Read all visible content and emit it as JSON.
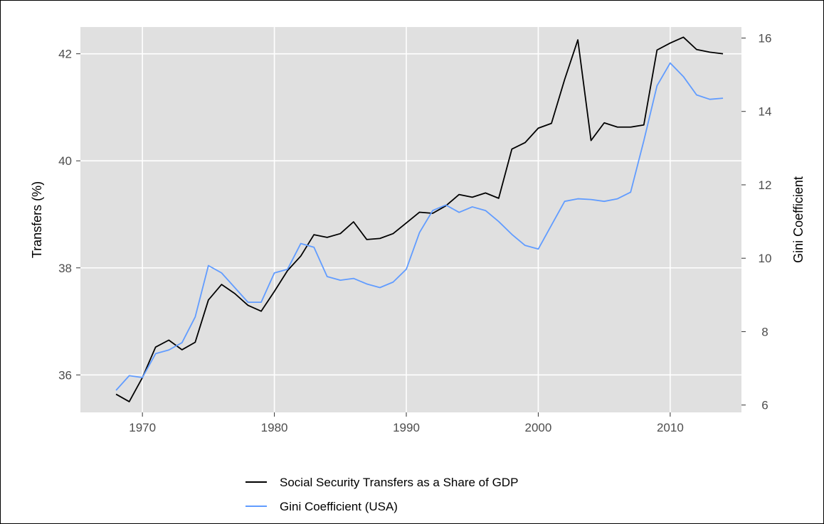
{
  "chart_data": {
    "type": "line",
    "x": [
      1968,
      1969,
      1970,
      1971,
      1972,
      1973,
      1974,
      1975,
      1976,
      1977,
      1978,
      1979,
      1980,
      1981,
      1982,
      1983,
      1984,
      1985,
      1986,
      1987,
      1988,
      1989,
      1990,
      1991,
      1992,
      1993,
      1994,
      1995,
      1996,
      1997,
      1998,
      1999,
      2000,
      2001,
      2002,
      2003,
      2004,
      2005,
      2006,
      2007,
      2008,
      2009,
      2010,
      2011,
      2012,
      2013,
      2014
    ],
    "xlim": [
      1965.3,
      2015.4
    ],
    "xticks": [
      "1970",
      "1980",
      "1990",
      "2000",
      "2010"
    ],
    "series": [
      {
        "name": "Social Security Transfers as a Share of GDP",
        "axis": "left",
        "color": "#000000",
        "values": [
          35.64,
          35.5,
          35.95,
          36.52,
          36.65,
          36.47,
          36.61,
          37.4,
          37.69,
          37.52,
          37.3,
          37.19,
          37.56,
          37.95,
          38.22,
          38.62,
          38.57,
          38.64,
          38.86,
          38.53,
          38.55,
          38.64,
          38.84,
          39.04,
          39.02,
          39.16,
          39.37,
          39.32,
          39.4,
          39.3,
          40.22,
          40.34,
          40.61,
          40.7,
          41.52,
          42.26,
          40.38,
          40.71,
          40.63,
          40.63,
          40.67,
          42.07,
          42.2,
          42.31,
          42.08,
          42.03,
          42.0
        ]
      },
      {
        "name": "Gini Coefficient (USA)",
        "axis": "right",
        "color": "#619CFF",
        "values": [
          6.4,
          6.8,
          6.75,
          7.4,
          7.5,
          7.7,
          8.4,
          9.8,
          9.6,
          9.2,
          8.8,
          8.8,
          9.6,
          9.7,
          10.4,
          10.3,
          9.5,
          9.4,
          9.45,
          9.3,
          9.2,
          9.35,
          9.7,
          10.7,
          11.3,
          11.45,
          11.25,
          11.4,
          11.3,
          11.0,
          10.65,
          10.35,
          10.25,
          10.9,
          11.55,
          11.62,
          11.6,
          11.55,
          11.62,
          11.8,
          13.2,
          14.7,
          15.32,
          14.95,
          14.45,
          14.33,
          14.36
        ]
      }
    ],
    "left_axis": {
      "label": "Transfers (%)",
      "ylim": [
        35.3,
        42.5
      ],
      "ticks": [
        "36",
        "38",
        "40",
        "42"
      ]
    },
    "right_axis": {
      "label": "Gini Coefficient",
      "ylim": [
        5.8,
        16.3
      ],
      "ticks": [
        "6",
        "8",
        "10",
        "12",
        "14",
        "16"
      ]
    },
    "panel_background": "#e0e0e0",
    "grid": true,
    "legend_position": "bottom"
  }
}
